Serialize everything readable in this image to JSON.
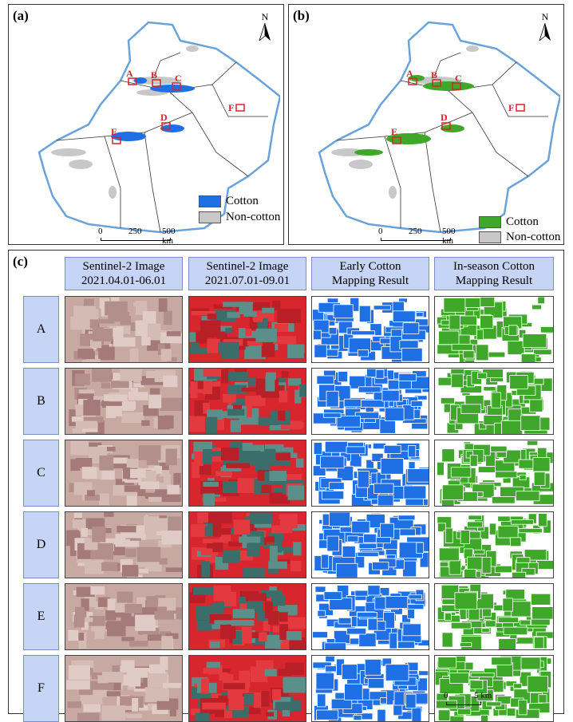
{
  "panels": {
    "a_label": "(a)",
    "b_label": "(b)",
    "c_label": "(c)"
  },
  "maps": {
    "north_label": "N",
    "sites": [
      "A",
      "B",
      "C",
      "D",
      "E",
      "F"
    ],
    "scale_ticks": [
      "0",
      "250",
      "500 km"
    ],
    "legend_a": {
      "cotton": "Cotton",
      "noncotton": "Non-cotton"
    },
    "legend_b": {
      "cotton": "Cotton",
      "noncotton": "Non-cotton"
    }
  },
  "grid": {
    "columns": [
      {
        "line1": "Sentinel-2 Image",
        "line2": "2021.04.01-06.01"
      },
      {
        "line1": "Sentinel-2 Image",
        "line2": "2021.07.01-09.01"
      },
      {
        "line1": "Early Cotton",
        "line2": "Mapping Result"
      },
      {
        "line1": "In-season Cotton",
        "line2": "Mapping Result"
      }
    ],
    "rows": [
      "A",
      "B",
      "C",
      "D",
      "E",
      "F"
    ],
    "scale_ticks": [
      "0",
      "5 km"
    ]
  },
  "colors": {
    "early_cotton": "#1f6fe5",
    "inseason_cotton": "#3fa82a",
    "noncotton": "#c8c8c8",
    "boundary": "#6aa3d9",
    "header_fill": "#c6d4f6",
    "site_box": "#d8232a"
  }
}
